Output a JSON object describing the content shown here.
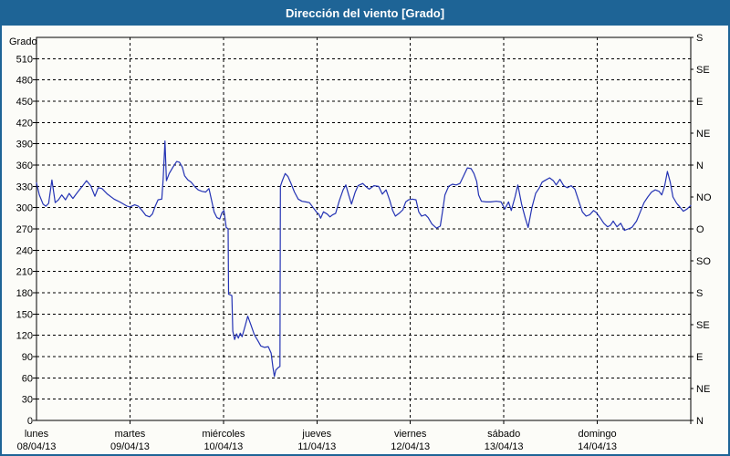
{
  "title": "Dirección del viento [Grado]",
  "colors": {
    "titlebar": "#1e6496",
    "border": "#1e6496",
    "background": "#fcfcf8",
    "line": "#2433b4",
    "grid": "#000000",
    "title_text": "#ffffff"
  },
  "chart_data": {
    "type": "line",
    "title": "Dirección del viento [Grado]",
    "ylabel": "Grado",
    "ylim": [
      0,
      540
    ],
    "grid": true,
    "legend": "none",
    "line_color": "#2433b4",
    "y_ticks": [
      0,
      30,
      60,
      90,
      120,
      150,
      180,
      210,
      240,
      270,
      300,
      330,
      360,
      390,
      420,
      450,
      480,
      510
    ],
    "right_axis": {
      "description": "compass direction labels every 45 degrees, bottom to top",
      "ticks": [
        {
          "value": 0,
          "label": "N"
        },
        {
          "value": 45,
          "label": "NE"
        },
        {
          "value": 90,
          "label": "E"
        },
        {
          "value": 135,
          "label": "SE"
        },
        {
          "value": 180,
          "label": "S"
        },
        {
          "value": 225,
          "label": "SO"
        },
        {
          "value": 270,
          "label": "O"
        },
        {
          "value": 315,
          "label": "NO"
        },
        {
          "value": 360,
          "label": "N"
        },
        {
          "value": 405,
          "label": "NE"
        },
        {
          "value": 450,
          "label": "E"
        },
        {
          "value": 495,
          "label": "SE"
        },
        {
          "value": 540,
          "label": "S"
        }
      ]
    },
    "x_span_days": 7,
    "x_categories": [
      {
        "name": "lunes",
        "date": "08/04/13"
      },
      {
        "name": "martes",
        "date": "09/04/13"
      },
      {
        "name": "miércoles",
        "date": "10/04/13"
      },
      {
        "name": "jueves",
        "date": "11/04/13"
      },
      {
        "name": "viernes",
        "date": "12/04/13"
      },
      {
        "name": "sábado",
        "date": "13/04/13"
      },
      {
        "name": "domingo",
        "date": "14/04/13"
      }
    ],
    "series": [
      {
        "name": "Dirección del viento [Grado]",
        "points": [
          [
            0.0,
            335
          ],
          [
            0.03,
            318
          ],
          [
            0.07,
            305
          ],
          [
            0.1,
            302
          ],
          [
            0.13,
            306
          ],
          [
            0.165,
            339
          ],
          [
            0.2,
            307
          ],
          [
            0.235,
            311
          ],
          [
            0.27,
            318
          ],
          [
            0.31,
            311
          ],
          [
            0.35,
            320
          ],
          [
            0.39,
            313
          ],
          [
            0.44,
            322
          ],
          [
            0.49,
            330
          ],
          [
            0.535,
            338
          ],
          [
            0.58,
            331
          ],
          [
            0.625,
            316
          ],
          [
            0.66,
            328
          ],
          [
            0.7,
            327
          ],
          [
            0.76,
            319
          ],
          [
            0.83,
            312
          ],
          [
            0.89,
            308
          ],
          [
            0.97,
            302
          ],
          [
            1.0,
            301
          ],
          [
            1.05,
            304
          ],
          [
            1.09,
            302
          ],
          [
            1.13,
            296
          ],
          [
            1.17,
            289
          ],
          [
            1.21,
            287
          ],
          [
            1.24,
            291
          ],
          [
            1.27,
            302
          ],
          [
            1.3,
            311
          ],
          [
            1.34,
            312
          ],
          [
            1.355,
            340
          ],
          [
            1.375,
            394
          ],
          [
            1.39,
            338
          ],
          [
            1.42,
            348
          ],
          [
            1.46,
            357
          ],
          [
            1.5,
            365
          ],
          [
            1.53,
            364
          ],
          [
            1.56,
            357
          ],
          [
            1.585,
            345
          ],
          [
            1.62,
            339
          ],
          [
            1.655,
            336
          ],
          [
            1.69,
            330
          ],
          [
            1.73,
            325
          ],
          [
            1.77,
            323
          ],
          [
            1.81,
            322
          ],
          [
            1.845,
            327
          ],
          [
            1.875,
            309
          ],
          [
            1.9,
            294
          ],
          [
            1.93,
            286
          ],
          [
            1.96,
            284
          ],
          [
            1.985,
            293
          ],
          [
            2.005,
            296
          ],
          [
            2.03,
            272
          ],
          [
            2.05,
            270
          ],
          [
            2.055,
            178
          ],
          [
            2.09,
            176
          ],
          [
            2.1,
            126
          ],
          [
            2.12,
            114
          ],
          [
            2.14,
            122
          ],
          [
            2.16,
            116
          ],
          [
            2.18,
            123
          ],
          [
            2.2,
            118
          ],
          [
            2.23,
            132
          ],
          [
            2.26,
            147
          ],
          [
            2.29,
            136
          ],
          [
            2.33,
            121
          ],
          [
            2.37,
            112
          ],
          [
            2.4,
            105
          ],
          [
            2.44,
            103
          ],
          [
            2.48,
            104
          ],
          [
            2.51,
            95
          ],
          [
            2.53,
            75
          ],
          [
            2.545,
            62
          ],
          [
            2.56,
            71
          ],
          [
            2.59,
            75
          ],
          [
            2.605,
            76
          ],
          [
            2.61,
            330
          ],
          [
            2.63,
            338
          ],
          [
            2.66,
            348
          ],
          [
            2.69,
            344
          ],
          [
            2.72,
            335
          ],
          [
            2.76,
            322
          ],
          [
            2.8,
            312
          ],
          [
            2.84,
            309
          ],
          [
            2.88,
            308
          ],
          [
            2.92,
            307
          ],
          [
            2.96,
            300
          ],
          [
            3.0,
            293
          ],
          [
            3.02,
            291
          ],
          [
            3.04,
            285
          ],
          [
            3.07,
            294
          ],
          [
            3.11,
            291
          ],
          [
            3.14,
            287
          ],
          [
            3.17,
            290
          ],
          [
            3.2,
            292
          ],
          [
            3.24,
            310
          ],
          [
            3.28,
            325
          ],
          [
            3.31,
            332
          ],
          [
            3.34,
            318
          ],
          [
            3.37,
            305
          ],
          [
            3.41,
            322
          ],
          [
            3.44,
            331
          ],
          [
            3.49,
            334
          ],
          [
            3.53,
            329
          ],
          [
            3.56,
            326
          ],
          [
            3.61,
            331
          ],
          [
            3.66,
            330
          ],
          [
            3.7,
            319
          ],
          [
            3.74,
            325
          ],
          [
            3.78,
            310
          ],
          [
            3.81,
            296
          ],
          [
            3.84,
            288
          ],
          [
            3.88,
            292
          ],
          [
            3.92,
            297
          ],
          [
            3.95,
            308
          ],
          [
            3.98,
            311
          ],
          [
            4.02,
            312
          ],
          [
            4.06,
            311
          ],
          [
            4.09,
            294
          ],
          [
            4.12,
            288
          ],
          [
            4.16,
            290
          ],
          [
            4.19,
            286
          ],
          [
            4.23,
            277
          ],
          [
            4.28,
            271
          ],
          [
            4.32,
            274
          ],
          [
            4.35,
            300
          ],
          [
            4.37,
            318
          ],
          [
            4.41,
            330
          ],
          [
            4.45,
            333
          ],
          [
            4.49,
            332
          ],
          [
            4.53,
            334
          ],
          [
            4.57,
            345
          ],
          [
            4.61,
            356
          ],
          [
            4.65,
            355
          ],
          [
            4.68,
            348
          ],
          [
            4.71,
            337
          ],
          [
            4.73,
            318
          ],
          [
            4.76,
            309
          ],
          [
            4.81,
            308
          ],
          [
            4.86,
            308
          ],
          [
            4.92,
            309
          ],
          [
            4.97,
            308
          ],
          [
            5.01,
            298
          ],
          [
            5.05,
            308
          ],
          [
            5.08,
            296
          ],
          [
            5.12,
            315
          ],
          [
            5.15,
            332
          ],
          [
            5.19,
            305
          ],
          [
            5.23,
            285
          ],
          [
            5.26,
            272
          ],
          [
            5.3,
            300
          ],
          [
            5.34,
            320
          ],
          [
            5.38,
            328
          ],
          [
            5.41,
            336
          ],
          [
            5.45,
            339
          ],
          [
            5.49,
            342
          ],
          [
            5.53,
            338
          ],
          [
            5.56,
            332
          ],
          [
            5.6,
            340
          ],
          [
            5.64,
            331
          ],
          [
            5.68,
            328
          ],
          [
            5.72,
            331
          ],
          [
            5.76,
            326
          ],
          [
            5.8,
            310
          ],
          [
            5.84,
            294
          ],
          [
            5.88,
            288
          ],
          [
            5.92,
            290
          ],
          [
            5.96,
            296
          ],
          [
            5.99,
            293
          ],
          [
            6.03,
            286
          ],
          [
            6.07,
            278
          ],
          [
            6.11,
            273
          ],
          [
            6.14,
            275
          ],
          [
            6.17,
            281
          ],
          [
            6.21,
            273
          ],
          [
            6.25,
            278
          ],
          [
            6.29,
            268
          ],
          [
            6.33,
            270
          ],
          [
            6.37,
            272
          ],
          [
            6.42,
            281
          ],
          [
            6.46,
            294
          ],
          [
            6.5,
            307
          ],
          [
            6.54,
            315
          ],
          [
            6.58,
            322
          ],
          [
            6.62,
            325
          ],
          [
            6.66,
            323
          ],
          [
            6.69,
            318
          ],
          [
            6.72,
            330
          ],
          [
            6.75,
            351
          ],
          [
            6.78,
            336
          ],
          [
            6.81,
            315
          ],
          [
            6.85,
            306
          ],
          [
            6.89,
            300
          ],
          [
            6.92,
            295
          ],
          [
            6.96,
            298
          ],
          [
            7.0,
            303
          ]
        ]
      }
    ]
  }
}
